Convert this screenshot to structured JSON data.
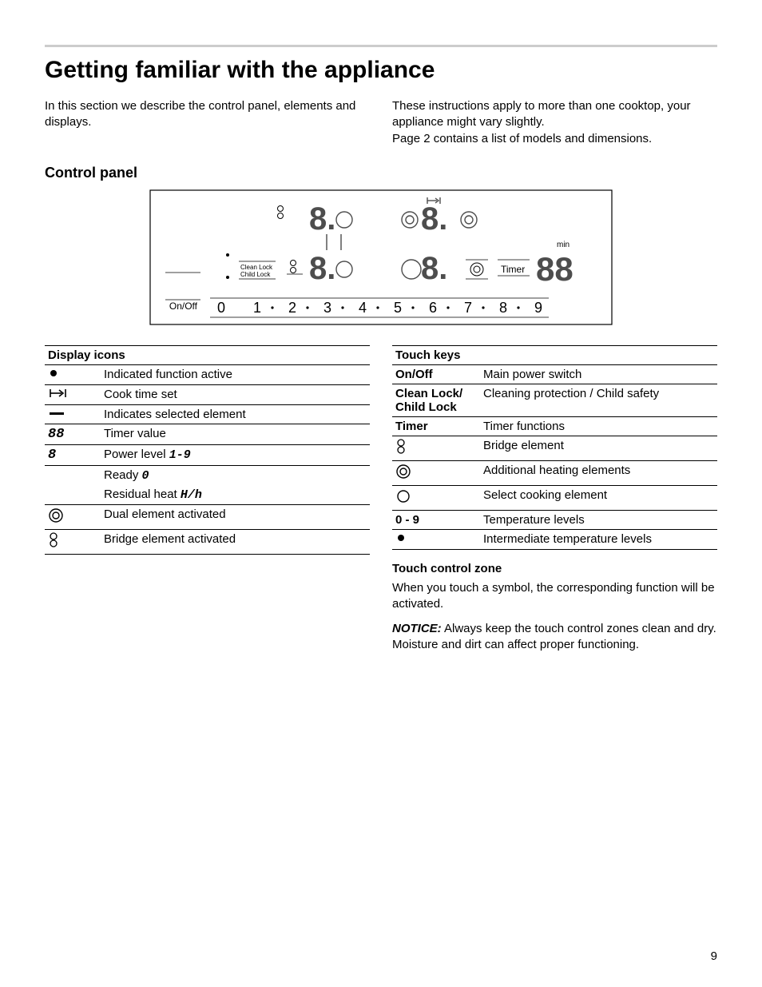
{
  "page": {
    "title": "Getting familiar with the appliance",
    "intro_left": "In this section we describe the control panel, elements and displays.",
    "intro_right_1": "These instructions apply to more than one cooktop, your appliance might vary slightly.",
    "intro_right_2": "Page 2 contains a list of models and dimensions.",
    "section_control_panel": "Control panel",
    "page_number": "9"
  },
  "panel": {
    "on_off": "On/Off",
    "clean_lock": "Clean Lock",
    "child_lock": "Child Lock",
    "timer": "Timer",
    "min": "min",
    "digits": [
      "0",
      "1",
      "2",
      "3",
      "4",
      "5",
      "6",
      "7",
      "8",
      "9"
    ]
  },
  "display_icons": {
    "header": "Display icons",
    "rows": [
      {
        "icon": "dot",
        "desc": "Indicated function active"
      },
      {
        "icon": "cooktime",
        "desc": "Cook time set"
      },
      {
        "icon": "bar",
        "desc": "Indicates selected element"
      },
      {
        "icon": "seg88",
        "desc": "Timer value"
      },
      {
        "icon": "seg8",
        "desc": "Power level",
        "extra": "1-9"
      },
      {
        "icon": "",
        "desc": "Ready",
        "extra": "0",
        "noborder": true
      },
      {
        "icon": "",
        "desc": "Residual heat",
        "extra": "H/h"
      },
      {
        "icon": "dual",
        "desc": "Dual element activated"
      },
      {
        "icon": "bridge",
        "desc": "Bridge element activated"
      }
    ]
  },
  "touch_keys": {
    "header": "Touch keys",
    "rows": [
      {
        "key": "On/Off",
        "desc": "Main power switch"
      },
      {
        "key": "Clean Lock/\nChild Lock",
        "desc": "Cleaning protection / Child safety"
      },
      {
        "key": "Timer",
        "desc": "Timer functions"
      },
      {
        "key_icon": "bridge",
        "desc": "Bridge element"
      },
      {
        "key_icon": "dual",
        "desc": "Additional heating elements"
      },
      {
        "key_icon": "circle",
        "desc": "Select cooking element"
      },
      {
        "key": "0 - 9",
        "desc": "Temperature levels"
      },
      {
        "key_icon": "dot",
        "desc": "Intermediate temperature levels"
      }
    ]
  },
  "touch_zone": {
    "heading": "Touch control zone",
    "body": "When you touch a symbol, the corresponding function will be activated.",
    "notice_label": "NOTICE:",
    "notice_body": "Always keep the touch control zones clean and dry. Moisture and dirt can affect proper functioning."
  },
  "style": {
    "rule_color": "#cccccc",
    "text_color": "#000000",
    "h1_size": 30,
    "h2_size": 18,
    "body_size": 15
  }
}
